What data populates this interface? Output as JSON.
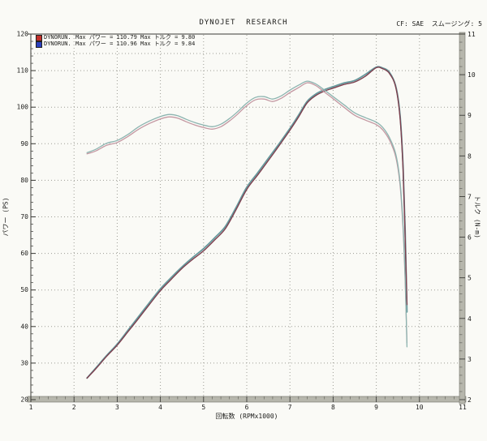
{
  "header": {
    "title": "DYNOJET  RESEARCH",
    "correction_info": "CF: SAE  スムージング: 5"
  },
  "legend": {
    "rows": [
      {
        "run_label": "DYNORUN.",
        "swatch_color": "#c2302a",
        "max_power": "Max パワー = 110.79",
        "max_torque": "Max トルク = 9.80"
      },
      {
        "run_label": "DYNORUN.",
        "swatch_color": "#2b3fbf",
        "max_power": "Max パワー = 110.96",
        "max_torque": "Max トルク = 9.84"
      }
    ]
  },
  "axes": {
    "x": {
      "label": "回転数 (RPMx1000)",
      "min": 1,
      "max": 11,
      "major_ticks": [
        1,
        2,
        3,
        4,
        5,
        6,
        7,
        8,
        9,
        10,
        11
      ],
      "minor_step": 0.2
    },
    "y_left": {
      "label": "パワー (PS)",
      "min": 20,
      "max": 120,
      "major_ticks": [
        20,
        30,
        40,
        50,
        60,
        70,
        80,
        90,
        100,
        110,
        120
      ],
      "minor_step": 2
    },
    "y_right": {
      "label": "トルク (N-m)",
      "min": 2,
      "max": 11,
      "major_ticks": [
        2,
        3,
        4,
        5,
        6,
        7,
        8,
        9,
        10,
        11
      ],
      "minor_step": 0.2
    }
  },
  "chart_data": {
    "type": "line",
    "title": "DYNOJET RESEARCH",
    "xlabel": "回転数 (RPMx1000)",
    "ylabel_left": "パワー (PS)",
    "ylabel_right": "トルク (N-m)",
    "x_range": [
      1,
      11
    ],
    "y_left_range": [
      20,
      120
    ],
    "y_right_range": [
      2,
      11
    ],
    "grid": "dotted",
    "legend_position": "top-left",
    "max_values": {
      "run1_power_ps": 110.79,
      "run2_power_ps": 110.96,
      "run1_torque": 9.8,
      "run2_torque": 9.84
    },
    "series": [
      {
        "name": "DYNORUN 2 パワー (blue run)",
        "axis": "left",
        "color": "#66989c",
        "width": 1.8,
        "x": [
          2.3,
          2.5,
          2.75,
          3.0,
          3.25,
          3.5,
          3.75,
          4.0,
          4.25,
          4.5,
          4.75,
          5.0,
          5.25,
          5.5,
          5.75,
          6.0,
          6.25,
          6.5,
          6.75,
          7.0,
          7.2,
          7.4,
          7.6,
          7.8,
          8.0,
          8.25,
          8.5,
          8.75,
          9.0,
          9.15,
          9.3,
          9.45,
          9.55,
          9.62,
          9.67,
          9.71
        ],
        "y": [
          25.9,
          28.6,
          32.0,
          35.2,
          39.0,
          42.8,
          46.6,
          50.3,
          53.4,
          56.3,
          58.9,
          61.3,
          64.2,
          67.3,
          72.5,
          78.1,
          82.0,
          86.0,
          90.0,
          94.2,
          97.8,
          101.6,
          103.6,
          104.8,
          105.6,
          106.6,
          107.3,
          109.0,
          110.96,
          110.7,
          109.6,
          105.8,
          97.8,
          84.0,
          66.0,
          44.0
        ]
      },
      {
        "name": "DYNORUN 1 パワー (red run)",
        "axis": "left",
        "color": "#7d3f4e",
        "width": 1.4,
        "x": [
          2.3,
          2.5,
          2.75,
          3.0,
          3.25,
          3.5,
          3.75,
          4.0,
          4.25,
          4.5,
          4.75,
          5.0,
          5.25,
          5.5,
          5.75,
          6.0,
          6.25,
          6.5,
          6.75,
          7.0,
          7.2,
          7.4,
          7.6,
          7.8,
          8.0,
          8.25,
          8.5,
          8.75,
          9.0,
          9.15,
          9.3,
          9.45,
          9.55,
          9.62,
          9.67,
          9.71
        ],
        "y": [
          25.9,
          28.4,
          31.8,
          34.9,
          38.6,
          42.3,
          46.1,
          49.8,
          52.9,
          55.9,
          58.4,
          60.7,
          63.6,
          66.7,
          71.9,
          77.5,
          81.4,
          85.4,
          89.5,
          93.7,
          97.3,
          101.2,
          103.2,
          104.4,
          105.2,
          106.2,
          106.9,
          108.5,
          110.79,
          110.5,
          109.3,
          105.5,
          97.0,
          83.0,
          64.0,
          46.0
        ]
      },
      {
        "name": "DYNORUN 1 トルク (red run)",
        "axis": "right",
        "color": "#c498a2",
        "width": 1.3,
        "x": [
          2.3,
          2.5,
          2.75,
          3.0,
          3.25,
          3.5,
          3.75,
          4.0,
          4.2,
          4.4,
          4.6,
          4.8,
          5.0,
          5.2,
          5.4,
          5.6,
          5.8,
          6.0,
          6.2,
          6.4,
          6.6,
          6.8,
          7.0,
          7.2,
          7.4,
          7.6,
          7.8,
          8.0,
          8.25,
          8.5,
          8.75,
          9.0,
          9.15,
          9.3,
          9.45,
          9.55,
          9.62,
          9.67,
          9.71
        ],
        "y": [
          8.05,
          8.12,
          8.26,
          8.33,
          8.48,
          8.66,
          8.8,
          8.91,
          8.96,
          8.93,
          8.84,
          8.76,
          8.7,
          8.66,
          8.72,
          8.86,
          9.04,
          9.24,
          9.38,
          9.4,
          9.34,
          9.42,
          9.56,
          9.68,
          9.8,
          9.73,
          9.57,
          9.41,
          9.2,
          9.0,
          8.88,
          8.77,
          8.64,
          8.4,
          7.98,
          7.28,
          6.2,
          4.9,
          3.4
        ]
      },
      {
        "name": "DYNORUN 2 トルク (blue run)",
        "axis": "right",
        "color": "#8cb4b0",
        "width": 1.3,
        "x": [
          2.3,
          2.5,
          2.75,
          3.0,
          3.25,
          3.5,
          3.75,
          4.0,
          4.2,
          4.4,
          4.6,
          4.8,
          5.0,
          5.2,
          5.4,
          5.6,
          5.8,
          6.0,
          6.2,
          6.4,
          6.6,
          6.8,
          7.0,
          7.2,
          7.4,
          7.6,
          7.8,
          8.0,
          8.25,
          8.5,
          8.75,
          9.0,
          9.15,
          9.3,
          9.45,
          9.55,
          9.62,
          9.67,
          9.71
        ],
        "y": [
          8.08,
          8.16,
          8.31,
          8.38,
          8.53,
          8.72,
          8.86,
          8.97,
          9.02,
          8.99,
          8.9,
          8.82,
          8.76,
          8.72,
          8.78,
          8.92,
          9.1,
          9.3,
          9.44,
          9.46,
          9.4,
          9.48,
          9.62,
          9.74,
          9.84,
          9.77,
          9.62,
          9.46,
          9.26,
          9.06,
          8.94,
          8.83,
          8.7,
          8.46,
          8.05,
          7.36,
          6.3,
          5.0,
          3.3
        ]
      }
    ]
  }
}
